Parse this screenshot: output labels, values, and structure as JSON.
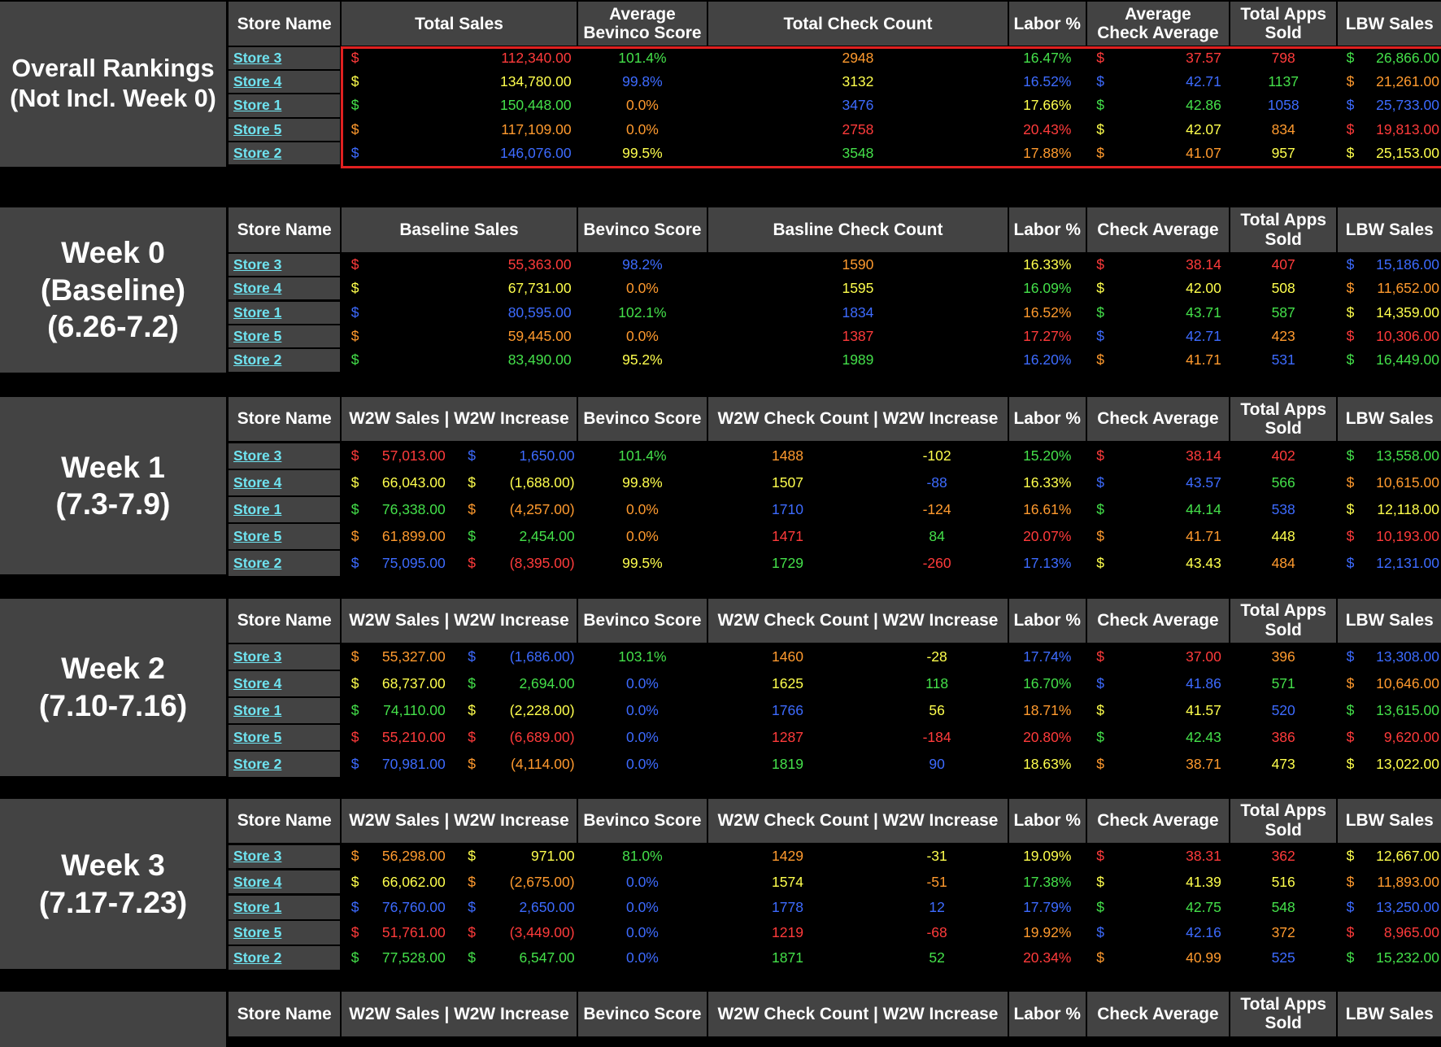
{
  "colors": {
    "red": "#ff3b3b",
    "yellow": "#ffff4d",
    "green": "#44e04a",
    "blue": "#3d6bff",
    "orange": "#ff9a2e",
    "white": "#ffffff",
    "store_link": "#6fe3f0"
  },
  "sections": [
    {
      "label": "Overall Rankings\n(Not Incl. Week 0)",
      "type": "overall",
      "headers": [
        "Store Name",
        "Total Sales",
        "Average\nBevinco Score",
        "Total Check Count",
        "Labor %",
        "Average\nCheck Average",
        "Total Apps\nSold",
        "LBW Sales"
      ],
      "rows": [
        {
          "store": "Store 3",
          "sales": "112,340.00",
          "sales_c": "red",
          "bev": "101.4%",
          "bev_c": "green",
          "checks": "2948",
          "checks_c": "orange",
          "labor": "16.47%",
          "labor_c": "green",
          "avg": "37.57",
          "avg_c": "red",
          "apps": "798",
          "apps_c": "red",
          "lbw": "26,866.00",
          "lbw_c": "green"
        },
        {
          "store": "Store 4",
          "sales": "134,780.00",
          "sales_c": "yellow",
          "bev": "99.8%",
          "bev_c": "blue",
          "checks": "3132",
          "checks_c": "yellow",
          "labor": "16.52%",
          "labor_c": "blue",
          "avg": "42.71",
          "avg_c": "blue",
          "apps": "1137",
          "apps_c": "green",
          "lbw": "21,261.00",
          "lbw_c": "orange"
        },
        {
          "store": "Store 1",
          "sales": "150,448.00",
          "sales_c": "green",
          "bev": "0.0%",
          "bev_c": "orange",
          "checks": "3476",
          "checks_c": "blue",
          "labor": "17.66%",
          "labor_c": "yellow",
          "avg": "42.86",
          "avg_c": "green",
          "apps": "1058",
          "apps_c": "blue",
          "lbw": "25,733.00",
          "lbw_c": "blue"
        },
        {
          "store": "Store 5",
          "sales": "117,109.00",
          "sales_c": "orange",
          "bev": "0.0%",
          "bev_c": "orange",
          "checks": "2758",
          "checks_c": "red",
          "labor": "20.43%",
          "labor_c": "red",
          "avg": "42.07",
          "avg_c": "yellow",
          "apps": "834",
          "apps_c": "orange",
          "lbw": "19,813.00",
          "lbw_c": "red"
        },
        {
          "store": "Store 2",
          "sales": "146,076.00",
          "sales_c": "blue",
          "bev": "99.5%",
          "bev_c": "yellow",
          "checks": "3548",
          "checks_c": "green",
          "labor": "17.88%",
          "labor_c": "orange",
          "avg": "41.07",
          "avg_c": "orange",
          "apps": "957",
          "apps_c": "yellow",
          "lbw": "25,153.00",
          "lbw_c": "yellow"
        }
      ]
    },
    {
      "label": "Week 0\n(Baseline)\n(6.26-7.2)",
      "type": "baseline",
      "headers": [
        "Store Name",
        "Baseline Sales",
        "Bevinco Score",
        "Basline Check Count",
        "Labor %",
        "Check Average",
        "Total Apps\nSold",
        "LBW Sales"
      ],
      "rows": [
        {
          "store": "Store 3",
          "sales": "55,363.00",
          "sales_c": "red",
          "bev": "98.2%",
          "bev_c": "blue",
          "checks": "1590",
          "checks_c": "orange",
          "labor": "16.33%",
          "labor_c": "yellow",
          "avg": "38.14",
          "avg_c": "red",
          "apps": "407",
          "apps_c": "red",
          "lbw": "15,186.00",
          "lbw_c": "blue"
        },
        {
          "store": "Store 4",
          "sales": "67,731.00",
          "sales_c": "yellow",
          "bev": "0.0%",
          "bev_c": "orange",
          "checks": "1595",
          "checks_c": "yellow",
          "labor": "16.09%",
          "labor_c": "green",
          "avg": "42.00",
          "avg_c": "yellow",
          "apps": "508",
          "apps_c": "yellow",
          "lbw": "11,652.00",
          "lbw_c": "orange"
        },
        {
          "store": "Store 1",
          "sales": "80,595.00",
          "sales_c": "blue",
          "bev": "102.1%",
          "bev_c": "green",
          "checks": "1834",
          "checks_c": "blue",
          "labor": "16.52%",
          "labor_c": "orange",
          "avg": "43.71",
          "avg_c": "green",
          "apps": "587",
          "apps_c": "green",
          "lbw": "14,359.00",
          "lbw_c": "yellow"
        },
        {
          "store": "Store 5",
          "sales": "59,445.00",
          "sales_c": "orange",
          "bev": "0.0%",
          "bev_c": "orange",
          "checks": "1387",
          "checks_c": "red",
          "labor": "17.27%",
          "labor_c": "red",
          "avg": "42.71",
          "avg_c": "blue",
          "apps": "423",
          "apps_c": "orange",
          "lbw": "10,306.00",
          "lbw_c": "red"
        },
        {
          "store": "Store 2",
          "sales": "83,490.00",
          "sales_c": "green",
          "bev": "95.2%",
          "bev_c": "yellow",
          "checks": "1989",
          "checks_c": "green",
          "labor": "16.20%",
          "labor_c": "blue",
          "avg": "41.71",
          "avg_c": "orange",
          "apps": "531",
          "apps_c": "blue",
          "lbw": "16,449.00",
          "lbw_c": "green"
        }
      ]
    },
    {
      "label": "Week 1\n(7.3-7.9)",
      "type": "week",
      "headers": [
        "Store Name",
        "W2W Sales | W2W Increase",
        "Bevinco Score",
        "W2W Check Count | W2W Increase",
        "Labor %",
        "Check Average",
        "Total Apps\nSold",
        "LBW Sales"
      ],
      "rows": [
        {
          "store": "Store 3",
          "sales": "57,013.00",
          "sales_c": "red",
          "inc": "1,650.00",
          "inc_c": "blue",
          "bev": "101.4%",
          "bev_c": "green",
          "checks": "1488",
          "checks_c": "orange",
          "cinc": "-102",
          "cinc_c": "yellow",
          "labor": "15.20%",
          "labor_c": "green",
          "avg": "38.14",
          "avg_c": "red",
          "apps": "402",
          "apps_c": "red",
          "lbw": "13,558.00",
          "lbw_c": "green"
        },
        {
          "store": "Store 4",
          "sales": "66,043.00",
          "sales_c": "yellow",
          "inc": "(1,688.00)",
          "inc_c": "yellow",
          "bev": "99.8%",
          "bev_c": "yellow",
          "checks": "1507",
          "checks_c": "yellow",
          "cinc": "-88",
          "cinc_c": "blue",
          "labor": "16.33%",
          "labor_c": "yellow",
          "avg": "43.57",
          "avg_c": "blue",
          "apps": "566",
          "apps_c": "green",
          "lbw": "10,615.00",
          "lbw_c": "orange"
        },
        {
          "store": "Store 1",
          "sales": "76,338.00",
          "sales_c": "green",
          "inc": "(4,257.00)",
          "inc_c": "orange",
          "bev": "0.0%",
          "bev_c": "orange",
          "checks": "1710",
          "checks_c": "blue",
          "cinc": "-124",
          "cinc_c": "orange",
          "labor": "16.61%",
          "labor_c": "orange",
          "avg": "44.14",
          "avg_c": "green",
          "apps": "538",
          "apps_c": "blue",
          "lbw": "12,118.00",
          "lbw_c": "yellow"
        },
        {
          "store": "Store 5",
          "sales": "61,899.00",
          "sales_c": "orange",
          "inc": "2,454.00",
          "inc_c": "green",
          "bev": "0.0%",
          "bev_c": "orange",
          "checks": "1471",
          "checks_c": "red",
          "cinc": "84",
          "cinc_c": "green",
          "labor": "20.07%",
          "labor_c": "red",
          "avg": "41.71",
          "avg_c": "orange",
          "apps": "448",
          "apps_c": "yellow",
          "lbw": "10,193.00",
          "lbw_c": "red"
        },
        {
          "store": "Store 2",
          "sales": "75,095.00",
          "sales_c": "blue",
          "inc": "(8,395.00)",
          "inc_c": "red",
          "bev": "99.5%",
          "bev_c": "yellow",
          "checks": "1729",
          "checks_c": "green",
          "cinc": "-260",
          "cinc_c": "red",
          "labor": "17.13%",
          "labor_c": "blue",
          "avg": "43.43",
          "avg_c": "yellow",
          "apps": "484",
          "apps_c": "orange",
          "lbw": "12,131.00",
          "lbw_c": "blue"
        }
      ]
    },
    {
      "label": "Week 2\n(7.10-7.16)",
      "type": "week",
      "headers": [
        "Store Name",
        "W2W Sales | W2W Increase",
        "Bevinco Score",
        "W2W Check Count | W2W Increase",
        "Labor %",
        "Check Average",
        "Total Apps\nSold",
        "LBW Sales"
      ],
      "rows": [
        {
          "store": "Store 3",
          "sales": "55,327.00",
          "sales_c": "orange",
          "inc": "(1,686.00)",
          "inc_c": "blue",
          "bev": "103.1%",
          "bev_c": "green",
          "checks": "1460",
          "checks_c": "orange",
          "cinc": "-28",
          "cinc_c": "yellow",
          "labor": "17.74%",
          "labor_c": "blue",
          "avg": "37.00",
          "avg_c": "red",
          "apps": "396",
          "apps_c": "orange",
          "lbw": "13,308.00",
          "lbw_c": "blue"
        },
        {
          "store": "Store 4",
          "sales": "68,737.00",
          "sales_c": "yellow",
          "inc": "2,694.00",
          "inc_c": "green",
          "bev": "0.0%",
          "bev_c": "blue",
          "checks": "1625",
          "checks_c": "yellow",
          "cinc": "118",
          "cinc_c": "green",
          "labor": "16.70%",
          "labor_c": "green",
          "avg": "41.86",
          "avg_c": "blue",
          "apps": "571",
          "apps_c": "green",
          "lbw": "10,646.00",
          "lbw_c": "orange"
        },
        {
          "store": "Store 1",
          "sales": "74,110.00",
          "sales_c": "green",
          "inc": "(2,228.00)",
          "inc_c": "yellow",
          "bev": "0.0%",
          "bev_c": "blue",
          "checks": "1766",
          "checks_c": "blue",
          "cinc": "56",
          "cinc_c": "yellow",
          "labor": "18.71%",
          "labor_c": "orange",
          "avg": "41.57",
          "avg_c": "yellow",
          "apps": "520",
          "apps_c": "blue",
          "lbw": "13,615.00",
          "lbw_c": "green"
        },
        {
          "store": "Store 5",
          "sales": "55,210.00",
          "sales_c": "red",
          "inc": "(6,689.00)",
          "inc_c": "red",
          "bev": "0.0%",
          "bev_c": "blue",
          "checks": "1287",
          "checks_c": "red",
          "cinc": "-184",
          "cinc_c": "red",
          "labor": "20.80%",
          "labor_c": "red",
          "avg": "42.43",
          "avg_c": "green",
          "apps": "386",
          "apps_c": "red",
          "lbw": "9,620.00",
          "lbw_c": "red"
        },
        {
          "store": "Store 2",
          "sales": "70,981.00",
          "sales_c": "blue",
          "inc": "(4,114.00)",
          "inc_c": "orange",
          "bev": "0.0%",
          "bev_c": "blue",
          "checks": "1819",
          "checks_c": "green",
          "cinc": "90",
          "cinc_c": "blue",
          "labor": "18.63%",
          "labor_c": "yellow",
          "avg": "38.71",
          "avg_c": "orange",
          "apps": "473",
          "apps_c": "yellow",
          "lbw": "13,022.00",
          "lbw_c": "yellow"
        }
      ]
    },
    {
      "label": "Week 3\n(7.17-7.23)",
      "type": "week",
      "headers": [
        "Store Name",
        "W2W Sales | W2W Increase",
        "Bevinco Score",
        "W2W Check Count | W2W Increase",
        "Labor %",
        "Check Average",
        "Total Apps\nSold",
        "LBW Sales"
      ],
      "rows": [
        {
          "store": "Store 3",
          "sales": "56,298.00",
          "sales_c": "orange",
          "inc": "971.00",
          "inc_c": "yellow",
          "bev": "81.0%",
          "bev_c": "green",
          "checks": "1429",
          "checks_c": "orange",
          "cinc": "-31",
          "cinc_c": "yellow",
          "labor": "19.09%",
          "labor_c": "yellow",
          "avg": "38.31",
          "avg_c": "red",
          "apps": "362",
          "apps_c": "red",
          "lbw": "12,667.00",
          "lbw_c": "yellow"
        },
        {
          "store": "Store 4",
          "sales": "66,062.00",
          "sales_c": "yellow",
          "inc": "(2,675.00)",
          "inc_c": "orange",
          "bev": "0.0%",
          "bev_c": "blue",
          "checks": "1574",
          "checks_c": "yellow",
          "cinc": "-51",
          "cinc_c": "orange",
          "labor": "17.38%",
          "labor_c": "green",
          "avg": "41.39",
          "avg_c": "yellow",
          "apps": "516",
          "apps_c": "yellow",
          "lbw": "11,893.00",
          "lbw_c": "orange"
        },
        {
          "store": "Store 1",
          "sales": "76,760.00",
          "sales_c": "blue",
          "inc": "2,650.00",
          "inc_c": "blue",
          "bev": "0.0%",
          "bev_c": "blue",
          "checks": "1778",
          "checks_c": "blue",
          "cinc": "12",
          "cinc_c": "blue",
          "labor": "17.79%",
          "labor_c": "blue",
          "avg": "42.75",
          "avg_c": "green",
          "apps": "548",
          "apps_c": "green",
          "lbw": "13,250.00",
          "lbw_c": "blue"
        },
        {
          "store": "Store 5",
          "sales": "51,761.00",
          "sales_c": "red",
          "inc": "(3,449.00)",
          "inc_c": "red",
          "bev": "0.0%",
          "bev_c": "blue",
          "checks": "1219",
          "checks_c": "red",
          "cinc": "-68",
          "cinc_c": "red",
          "labor": "19.92%",
          "labor_c": "orange",
          "avg": "42.16",
          "avg_c": "blue",
          "apps": "372",
          "apps_c": "orange",
          "lbw": "8,965.00",
          "lbw_c": "red"
        },
        {
          "store": "Store 2",
          "sales": "77,528.00",
          "sales_c": "green",
          "inc": "6,547.00",
          "inc_c": "green",
          "bev": "0.0%",
          "bev_c": "blue",
          "checks": "1871",
          "checks_c": "green",
          "cinc": "52",
          "cinc_c": "green",
          "labor": "20.34%",
          "labor_c": "red",
          "avg": "40.99",
          "avg_c": "orange",
          "apps": "525",
          "apps_c": "blue",
          "lbw": "15,232.00",
          "lbw_c": "green"
        }
      ]
    },
    {
      "label": "",
      "type": "week",
      "headers": [
        "Store Name",
        "W2W Sales | W2W Increase",
        "Bevinco Score",
        "W2W Check Count | W2W Increase",
        "Labor %",
        "Check Average",
        "Total Apps\nSold",
        "LBW Sales"
      ],
      "rows": []
    }
  ],
  "dollar_sign": "$"
}
